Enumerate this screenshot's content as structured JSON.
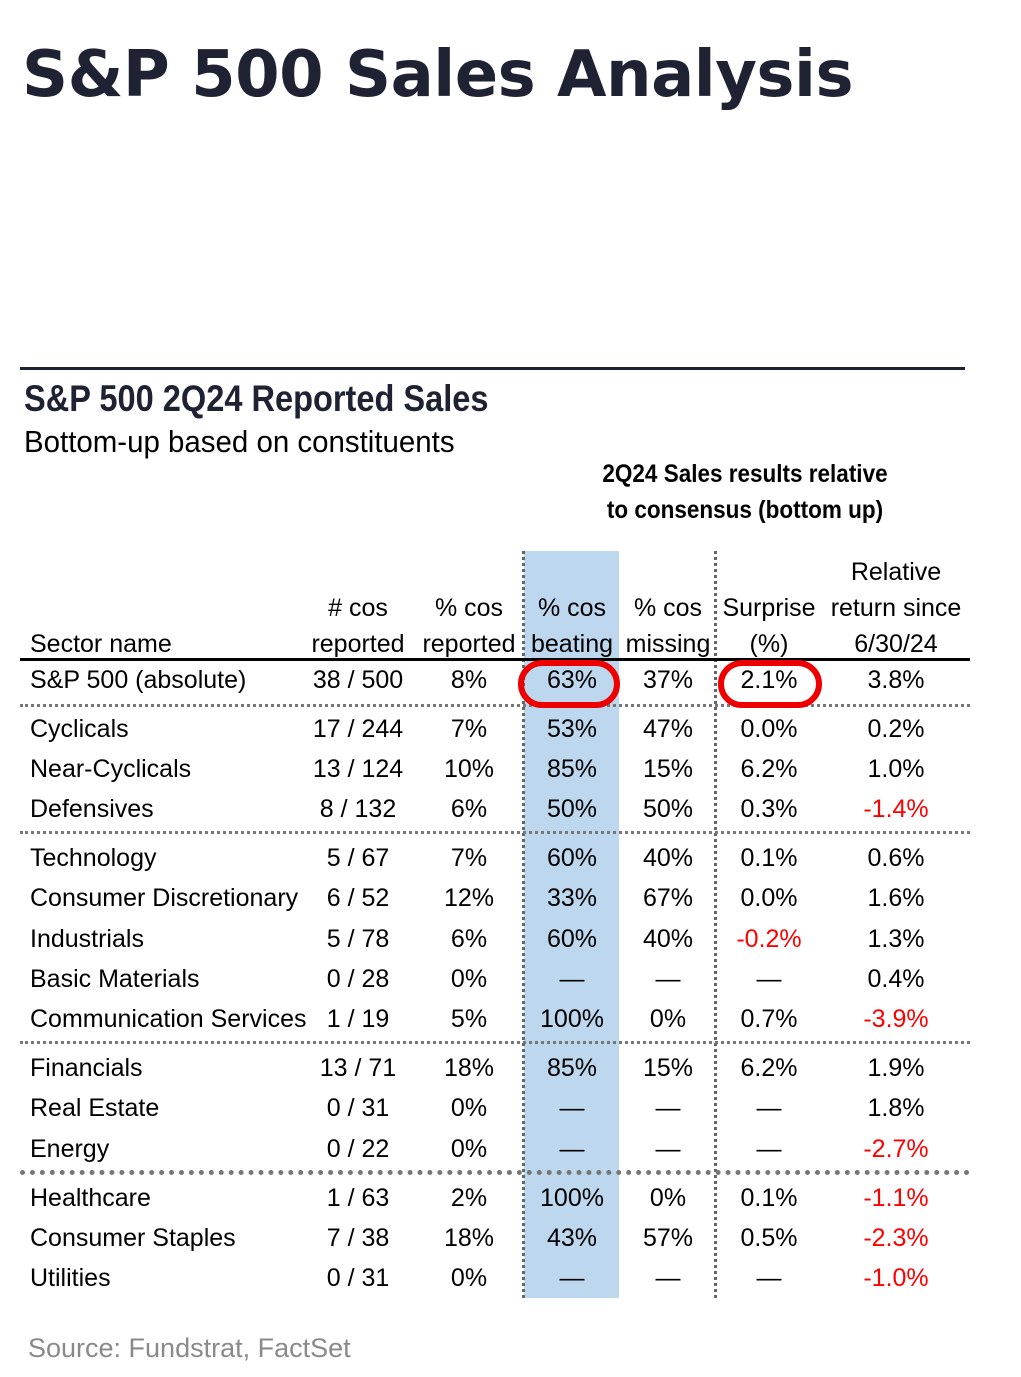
{
  "title": "S&P 500 Sales Analysis",
  "table_title": "S&P 500 2Q24 Reported Sales",
  "table_subtitle": "Bottom-up based on constituents",
  "group_header_line1": "2Q24 Sales results relative",
  "group_header_line2": "to consensus (bottom up)",
  "columns": [
    {
      "lines": [
        "",
        "",
        "Sector name"
      ]
    },
    {
      "lines": [
        "",
        "# cos",
        "reported"
      ]
    },
    {
      "lines": [
        "",
        "% cos",
        "reported"
      ]
    },
    {
      "lines": [
        "",
        "% cos",
        "beating"
      ]
    },
    {
      "lines": [
        "",
        "% cos",
        "missing"
      ]
    },
    {
      "lines": [
        "",
        "Surprise",
        "(%)"
      ]
    },
    {
      "lines": [
        "Relative",
        "return since",
        "6/30/24"
      ]
    }
  ],
  "rows": [
    {
      "name": "S&P 500 (absolute)",
      "reported": "38 / 500",
      "pct_reported": "8%",
      "beating": "63%",
      "missing": "37%",
      "surprise": "2.1%",
      "relative": "3.8%"
    },
    {
      "name": "Cyclicals",
      "reported": "17 / 244",
      "pct_reported": "7%",
      "beating": "53%",
      "missing": "47%",
      "surprise": "0.0%",
      "relative": "0.2%"
    },
    {
      "name": "Near-Cyclicals",
      "reported": "13 / 124",
      "pct_reported": "10%",
      "beating": "85%",
      "missing": "15%",
      "surprise": "6.2%",
      "relative": "1.0%"
    },
    {
      "name": "Defensives",
      "reported": "8 / 132",
      "pct_reported": "6%",
      "beating": "50%",
      "missing": "50%",
      "surprise": "0.3%",
      "relative": "-1.4%"
    },
    {
      "name": "Technology",
      "reported": "5 / 67",
      "pct_reported": "7%",
      "beating": "60%",
      "missing": "40%",
      "surprise": "0.1%",
      "relative": "0.6%"
    },
    {
      "name": "Consumer Discretionary",
      "reported": "6 / 52",
      "pct_reported": "12%",
      "beating": "33%",
      "missing": "67%",
      "surprise": "0.0%",
      "relative": "1.6%"
    },
    {
      "name": "Industrials",
      "reported": "5 / 78",
      "pct_reported": "6%",
      "beating": "60%",
      "missing": "40%",
      "surprise": "-0.2%",
      "relative": "1.3%"
    },
    {
      "name": "Basic Materials",
      "reported": "0 / 28",
      "pct_reported": "0%",
      "beating": "—",
      "missing": "—",
      "surprise": "—",
      "relative": "0.4%"
    },
    {
      "name": "Communication Services",
      "reported": "1 / 19",
      "pct_reported": "5%",
      "beating": "100%",
      "missing": "0%",
      "surprise": "0.7%",
      "relative": "-3.9%"
    },
    {
      "name": "Financials",
      "reported": "13 / 71",
      "pct_reported": "18%",
      "beating": "85%",
      "missing": "15%",
      "surprise": "6.2%",
      "relative": "1.9%"
    },
    {
      "name": "Real Estate",
      "reported": "0 / 31",
      "pct_reported": "0%",
      "beating": "—",
      "missing": "—",
      "surprise": "—",
      "relative": "1.8%"
    },
    {
      "name": "Energy",
      "reported": "0 / 22",
      "pct_reported": "0%",
      "beating": "—",
      "missing": "—",
      "surprise": "—",
      "relative": "-2.7%"
    },
    {
      "name": "Healthcare",
      "reported": "1 / 63",
      "pct_reported": "2%",
      "beating": "100%",
      "missing": "0%",
      "surprise": "0.1%",
      "relative": "-1.1%"
    },
    {
      "name": "Consumer Staples",
      "reported": "7 / 38",
      "pct_reported": "18%",
      "beating": "43%",
      "missing": "57%",
      "surprise": "0.5%",
      "relative": "-2.3%"
    },
    {
      "name": "Utilities",
      "reported": "0 / 31",
      "pct_reported": "0%",
      "beating": "—",
      "missing": "—",
      "surprise": "—",
      "relative": "-1.0%"
    }
  ],
  "highlight_color": "#bdd7ee",
  "negative_color": "#ff0000",
  "source": "Source: Fundstrat, FactSet"
}
